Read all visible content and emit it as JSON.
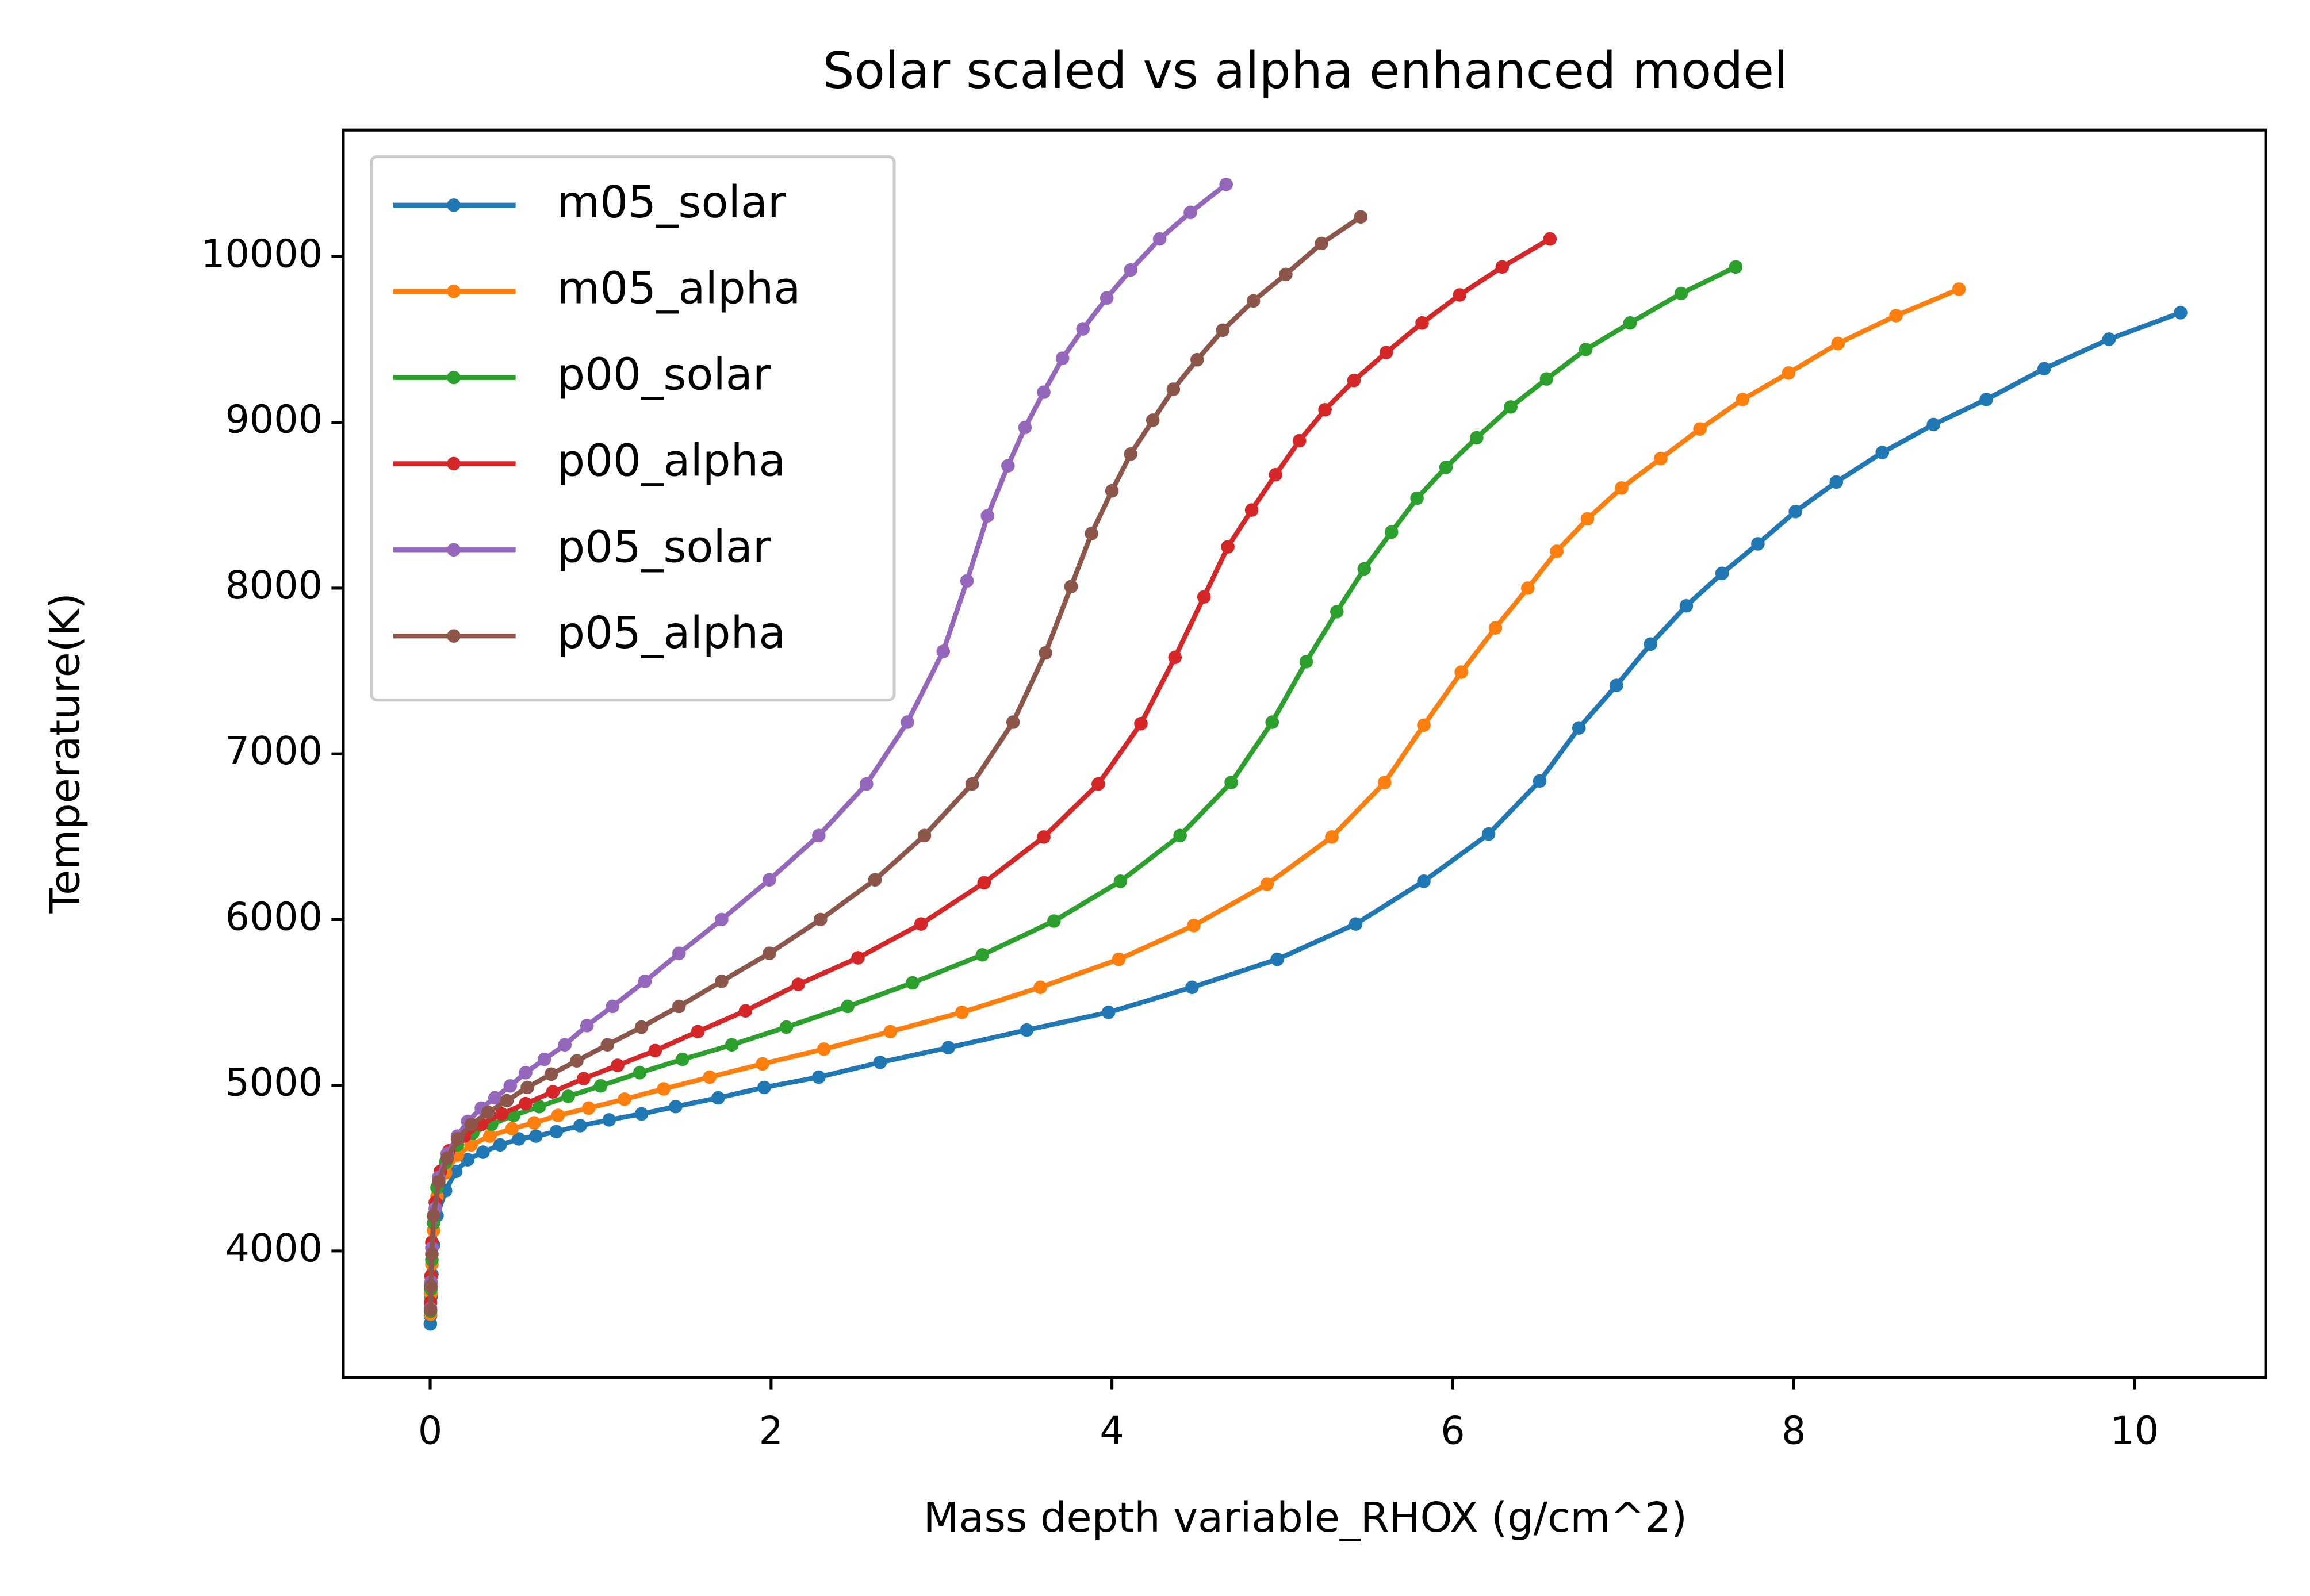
{
  "chart_data": {
    "type": "line",
    "title": "Solar scaled vs alpha enhanced model",
    "x_label": "Mass depth variable_RHOX (g/cm^2)",
    "y_label": "Temperature(K)",
    "xlim": [
      -0.51,
      10.77
    ],
    "ylim": [
      3236,
      10764
    ],
    "xticks": [
      0,
      2,
      4,
      6,
      8,
      10
    ],
    "yticks": [
      4000,
      5000,
      6000,
      7000,
      8000,
      9000,
      10000
    ],
    "grid": false,
    "legend": "upper left",
    "markers": true,
    "series": [
      {
        "name": "m05_solar",
        "color": "#1f77b4",
        "x": [
          0.001,
          0.002,
          0.005,
          0.01,
          0.02,
          0.04,
          0.09,
          0.15,
          0.22,
          0.31,
          0.41,
          0.52,
          0.62,
          0.74,
          0.88,
          1.05,
          1.24,
          1.44,
          1.69,
          1.96,
          2.28,
          2.64,
          3.04,
          3.5,
          3.98,
          4.47,
          4.97,
          5.43,
          5.83,
          6.21,
          6.51,
          6.74,
          6.96,
          7.16,
          7.37,
          7.58,
          7.79,
          8.01,
          8.25,
          8.52,
          8.82,
          9.13,
          9.47,
          9.85,
          10.27
        ],
        "values": [
          3560,
          3609,
          3724,
          3858,
          4036,
          4213,
          4364,
          4480,
          4551,
          4596,
          4640,
          4676,
          4693,
          4720,
          4756,
          4791,
          4827,
          4871,
          4924,
          4987,
          5049,
          5138,
          5227,
          5333,
          5440,
          5591,
          5760,
          5973,
          6231,
          6516,
          6836,
          7156,
          7413,
          7662,
          7893,
          8089,
          8267,
          8462,
          8640,
          8818,
          8987,
          9138,
          9324,
          9502,
          9662
        ]
      },
      {
        "name": "m05_alpha",
        "color": "#ff7f0e",
        "x": [
          0.002,
          0.004,
          0.01,
          0.02,
          0.04,
          0.09,
          0.16,
          0.24,
          0.35,
          0.48,
          0.61,
          0.75,
          0.93,
          1.14,
          1.37,
          1.64,
          1.95,
          2.31,
          2.7,
          3.12,
          3.58,
          4.04,
          4.48,
          4.91,
          5.29,
          5.6,
          5.83,
          6.05,
          6.25,
          6.44,
          6.61,
          6.79,
          6.99,
          7.22,
          7.45,
          7.7,
          7.97,
          8.26,
          8.6,
          8.97
        ],
        "values": [
          3618,
          3742,
          3920,
          4124,
          4329,
          4471,
          4578,
          4640,
          4693,
          4738,
          4773,
          4818,
          4862,
          4916,
          4978,
          5049,
          5129,
          5218,
          5324,
          5440,
          5591,
          5760,
          5964,
          6213,
          6498,
          6827,
          7173,
          7493,
          7760,
          8000,
          8222,
          8418,
          8604,
          8782,
          8960,
          9138,
          9298,
          9476,
          9644,
          9804
        ]
      },
      {
        "name": "p00_solar",
        "color": "#2ca02c",
        "x": [
          0.002,
          0.004,
          0.01,
          0.02,
          0.04,
          0.09,
          0.16,
          0.25,
          0.36,
          0.49,
          0.64,
          0.81,
          1.0,
          1.23,
          1.48,
          1.77,
          2.09,
          2.45,
          2.83,
          3.24,
          3.66,
          4.05,
          4.4,
          4.7,
          4.94,
          5.14,
          5.32,
          5.48,
          5.64,
          5.79,
          5.96,
          6.14,
          6.34,
          6.55,
          6.78,
          7.04,
          7.34,
          7.66
        ],
        "values": [
          3636,
          3769,
          3947,
          4169,
          4382,
          4533,
          4640,
          4711,
          4764,
          4818,
          4871,
          4933,
          4996,
          5076,
          5156,
          5244,
          5351,
          5476,
          5618,
          5787,
          5991,
          6231,
          6507,
          6827,
          7191,
          7556,
          7858,
          8116,
          8338,
          8542,
          8729,
          8907,
          9093,
          9262,
          9440,
          9600,
          9778,
          9938
        ]
      },
      {
        "name": "p00_alpha",
        "color": "#d62728",
        "x": [
          0.002,
          0.005,
          0.01,
          0.03,
          0.06,
          0.11,
          0.2,
          0.3,
          0.42,
          0.56,
          0.72,
          0.9,
          1.1,
          1.32,
          1.57,
          1.85,
          2.16,
          2.51,
          2.88,
          3.25,
          3.6,
          3.92,
          4.17,
          4.37,
          4.54,
          4.68,
          4.82,
          4.96,
          5.1,
          5.25,
          5.42,
          5.61,
          5.82,
          6.04,
          6.29,
          6.57
        ],
        "values": [
          3689,
          3849,
          4053,
          4293,
          4480,
          4604,
          4693,
          4764,
          4827,
          4889,
          4960,
          5040,
          5120,
          5209,
          5324,
          5449,
          5609,
          5769,
          5973,
          6222,
          6498,
          6818,
          7182,
          7582,
          7947,
          8249,
          8471,
          8684,
          8889,
          9076,
          9253,
          9422,
          9600,
          9769,
          9938,
          10107
        ]
      },
      {
        "name": "p05_solar",
        "color": "#9467bd",
        "x": [
          0.002,
          0.005,
          0.01,
          0.03,
          0.05,
          0.1,
          0.16,
          0.22,
          0.3,
          0.38,
          0.47,
          0.56,
          0.67,
          0.79,
          0.92,
          1.07,
          1.26,
          1.46,
          1.71,
          1.99,
          2.28,
          2.56,
          2.8,
          3.01,
          3.15,
          3.27,
          3.39,
          3.49,
          3.6,
          3.71,
          3.83,
          3.97,
          4.11,
          4.28,
          4.46,
          4.67
        ],
        "values": [
          3653,
          3813,
          4018,
          4258,
          4444,
          4587,
          4693,
          4782,
          4862,
          4924,
          4996,
          5076,
          5156,
          5244,
          5360,
          5476,
          5627,
          5796,
          6000,
          6240,
          6507,
          6818,
          7191,
          7618,
          8044,
          8436,
          8738,
          8969,
          9182,
          9387,
          9564,
          9751,
          9920,
          10107,
          10267,
          10436
        ]
      },
      {
        "name": "p05_alpha",
        "color": "#8c564b",
        "x": [
          0.002,
          0.004,
          0.01,
          0.02,
          0.05,
          0.1,
          0.16,
          0.24,
          0.34,
          0.45,
          0.57,
          0.71,
          0.86,
          1.04,
          1.24,
          1.46,
          1.71,
          1.99,
          2.29,
          2.61,
          2.9,
          3.18,
          3.42,
          3.61,
          3.76,
          3.88,
          4.0,
          4.11,
          4.24,
          4.36,
          4.5,
          4.65,
          4.83,
          5.02,
          5.23,
          5.46
        ],
        "values": [
          3644,
          3787,
          3982,
          4213,
          4418,
          4560,
          4676,
          4764,
          4836,
          4907,
          4987,
          5067,
          5147,
          5244,
          5351,
          5476,
          5627,
          5796,
          6000,
          6240,
          6507,
          6818,
          7191,
          7609,
          8009,
          8329,
          8587,
          8809,
          9013,
          9200,
          9378,
          9556,
          9733,
          9893,
          10080,
          10240
        ]
      }
    ]
  }
}
